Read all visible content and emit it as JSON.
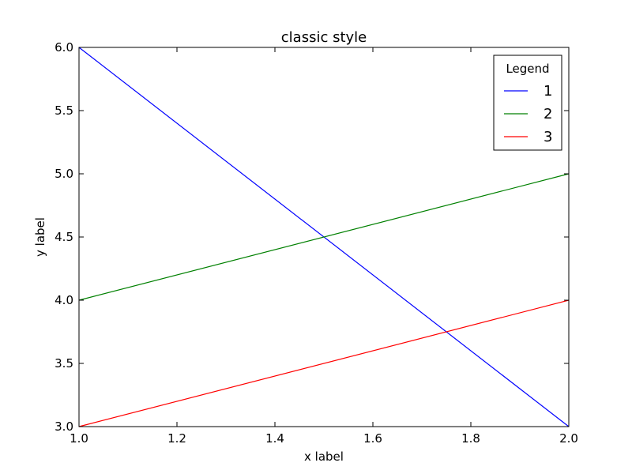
{
  "chart_data": {
    "type": "line",
    "title": "classic style",
    "xlabel": "x label",
    "ylabel": "y label",
    "xlim": [
      1.0,
      2.0
    ],
    "ylim": [
      3.0,
      6.0
    ],
    "xticks": [
      "1.0",
      "1.2",
      "1.4",
      "1.6",
      "1.8",
      "2.0"
    ],
    "yticks": [
      "3.0",
      "3.5",
      "4.0",
      "4.5",
      "5.0",
      "5.5",
      "6.0"
    ],
    "grid": false,
    "legend": {
      "title": "Legend",
      "placement": "top-right"
    },
    "series": [
      {
        "name": "1",
        "color": "#0000ff",
        "x": [
          1.0,
          2.0
        ],
        "y": [
          6.0,
          3.0
        ]
      },
      {
        "name": "2",
        "color": "#008000",
        "x": [
          1.0,
          2.0
        ],
        "y": [
          4.0,
          5.0
        ]
      },
      {
        "name": "3",
        "color": "#ff0000",
        "x": [
          1.0,
          2.0
        ],
        "y": [
          3.0,
          4.0
        ]
      }
    ]
  }
}
